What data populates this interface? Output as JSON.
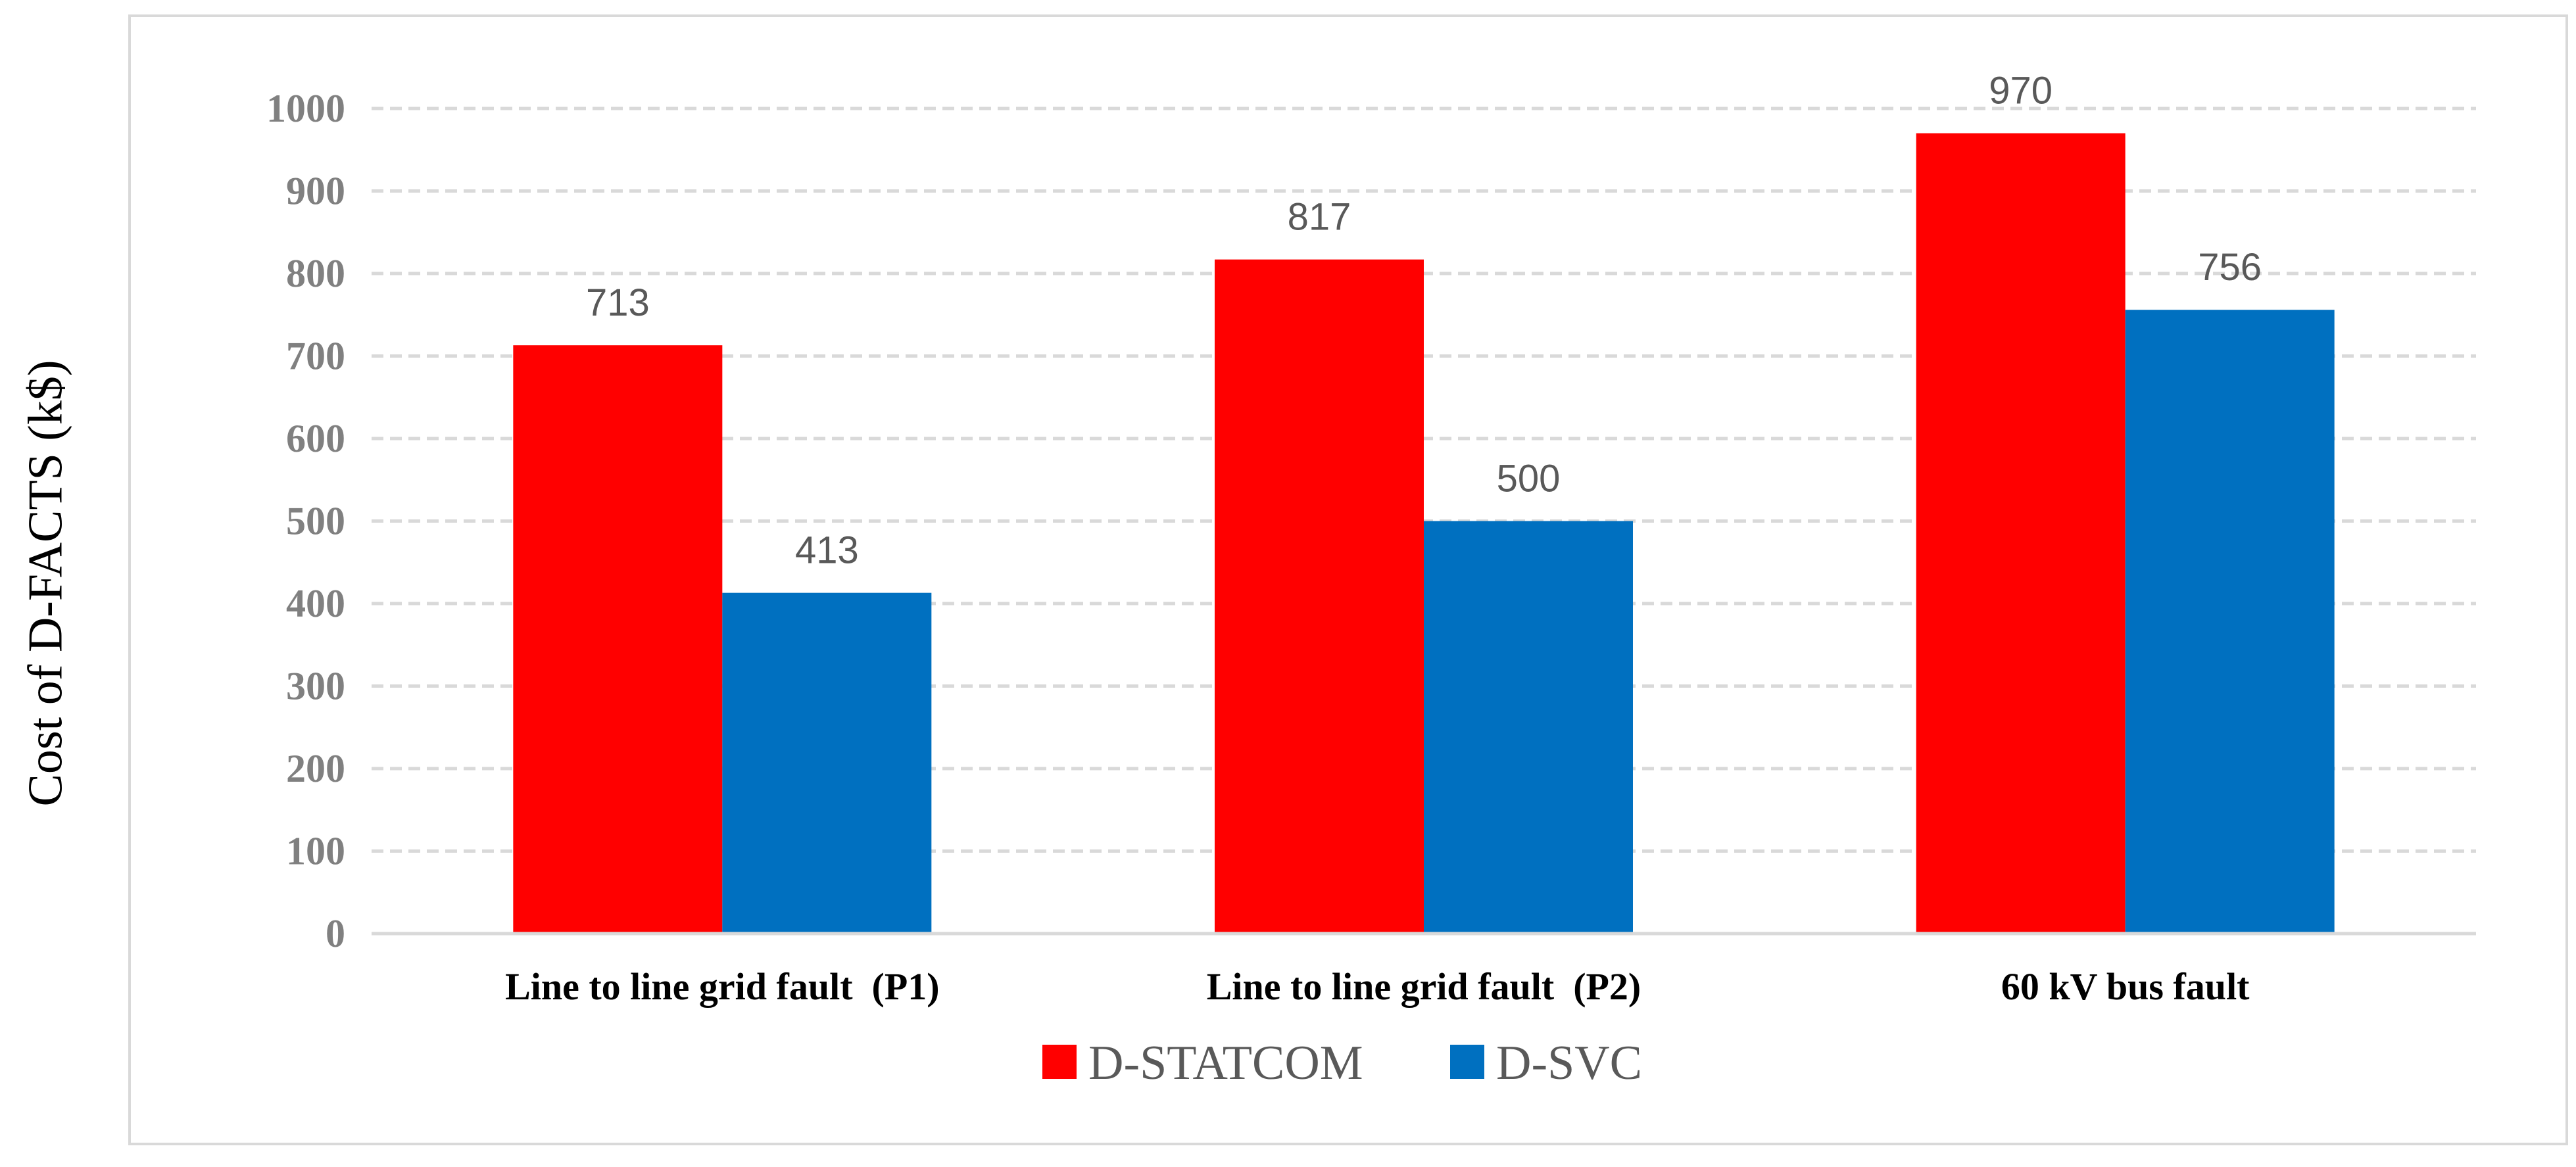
{
  "chart_data": {
    "type": "bar",
    "title": "",
    "xlabel": "",
    "ylabel": "Cost of D-FACTS (k$)",
    "categories": [
      "Line to line grid fault  (P1)",
      "Line to line grid fault  (P2)",
      "60 kV bus fault"
    ],
    "series": [
      {
        "name": "D-STATCOM",
        "color": "#ff0000",
        "values": [
          713,
          817,
          970
        ]
      },
      {
        "name": "D-SVC",
        "color": "#0070c0",
        "values": [
          413,
          500,
          756
        ]
      }
    ],
    "ylim": [
      0,
      1000
    ],
    "yticks": [
      0,
      100,
      200,
      300,
      400,
      500,
      600,
      700,
      800,
      900,
      1000
    ],
    "grid": true,
    "legend": "bottom-center"
  }
}
